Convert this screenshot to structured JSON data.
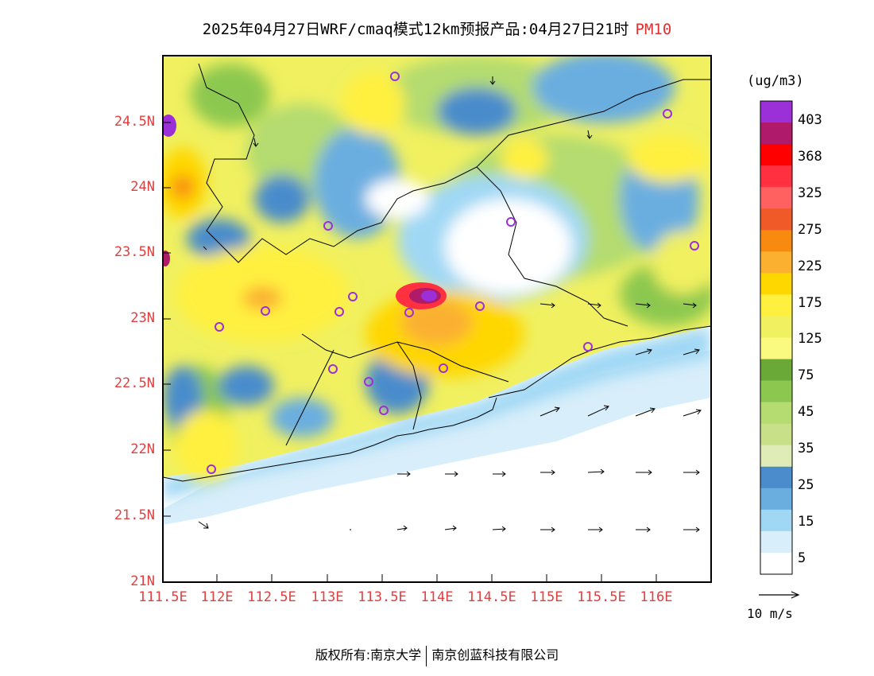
{
  "title": {
    "text": "2025年04月27日WRF/cmaq模式12km预报产品:04月27日21时",
    "pollutant": "PM10"
  },
  "map": {
    "lat_labels": [
      "24.5N",
      "24N",
      "23.5N",
      "23N",
      "22.5N",
      "22N",
      "21.5N",
      "21N"
    ],
    "lon_labels": [
      "111.5E",
      "112E",
      "112.5E",
      "113E",
      "113.5E",
      "114E",
      "114.5E",
      "115E",
      "115.5E",
      "116E"
    ],
    "lat_range": [
      21.0,
      25.0
    ],
    "lon_range": [
      111.5,
      116.5
    ]
  },
  "colorbar": {
    "unit": "(ug/m3)",
    "labels": [
      "403",
      "368",
      "325",
      "275",
      "225",
      "175",
      "125",
      "75",
      "45",
      "35",
      "25",
      "15",
      "5"
    ],
    "colors": [
      "#9b30d8",
      "#b01a6a",
      "#ff0000",
      "#ff3040",
      "#ff6060",
      "#ef5a28",
      "#f88a10",
      "#fbb030",
      "#ffd700",
      "#fff040",
      "#f0f060",
      "#fafa80",
      "#6aa838",
      "#8cc850",
      "#b4dc70",
      "#c8e088",
      "#e0ecb8",
      "#4a8ccc",
      "#6aaee0",
      "#a0d8f4",
      "#d8eefa",
      "#ffffff"
    ]
  },
  "wind": {
    "reference_label": "10 m/s"
  },
  "footer": {
    "left": "版权所有:南京大学",
    "right": "南京创蓝科技有限公司"
  }
}
